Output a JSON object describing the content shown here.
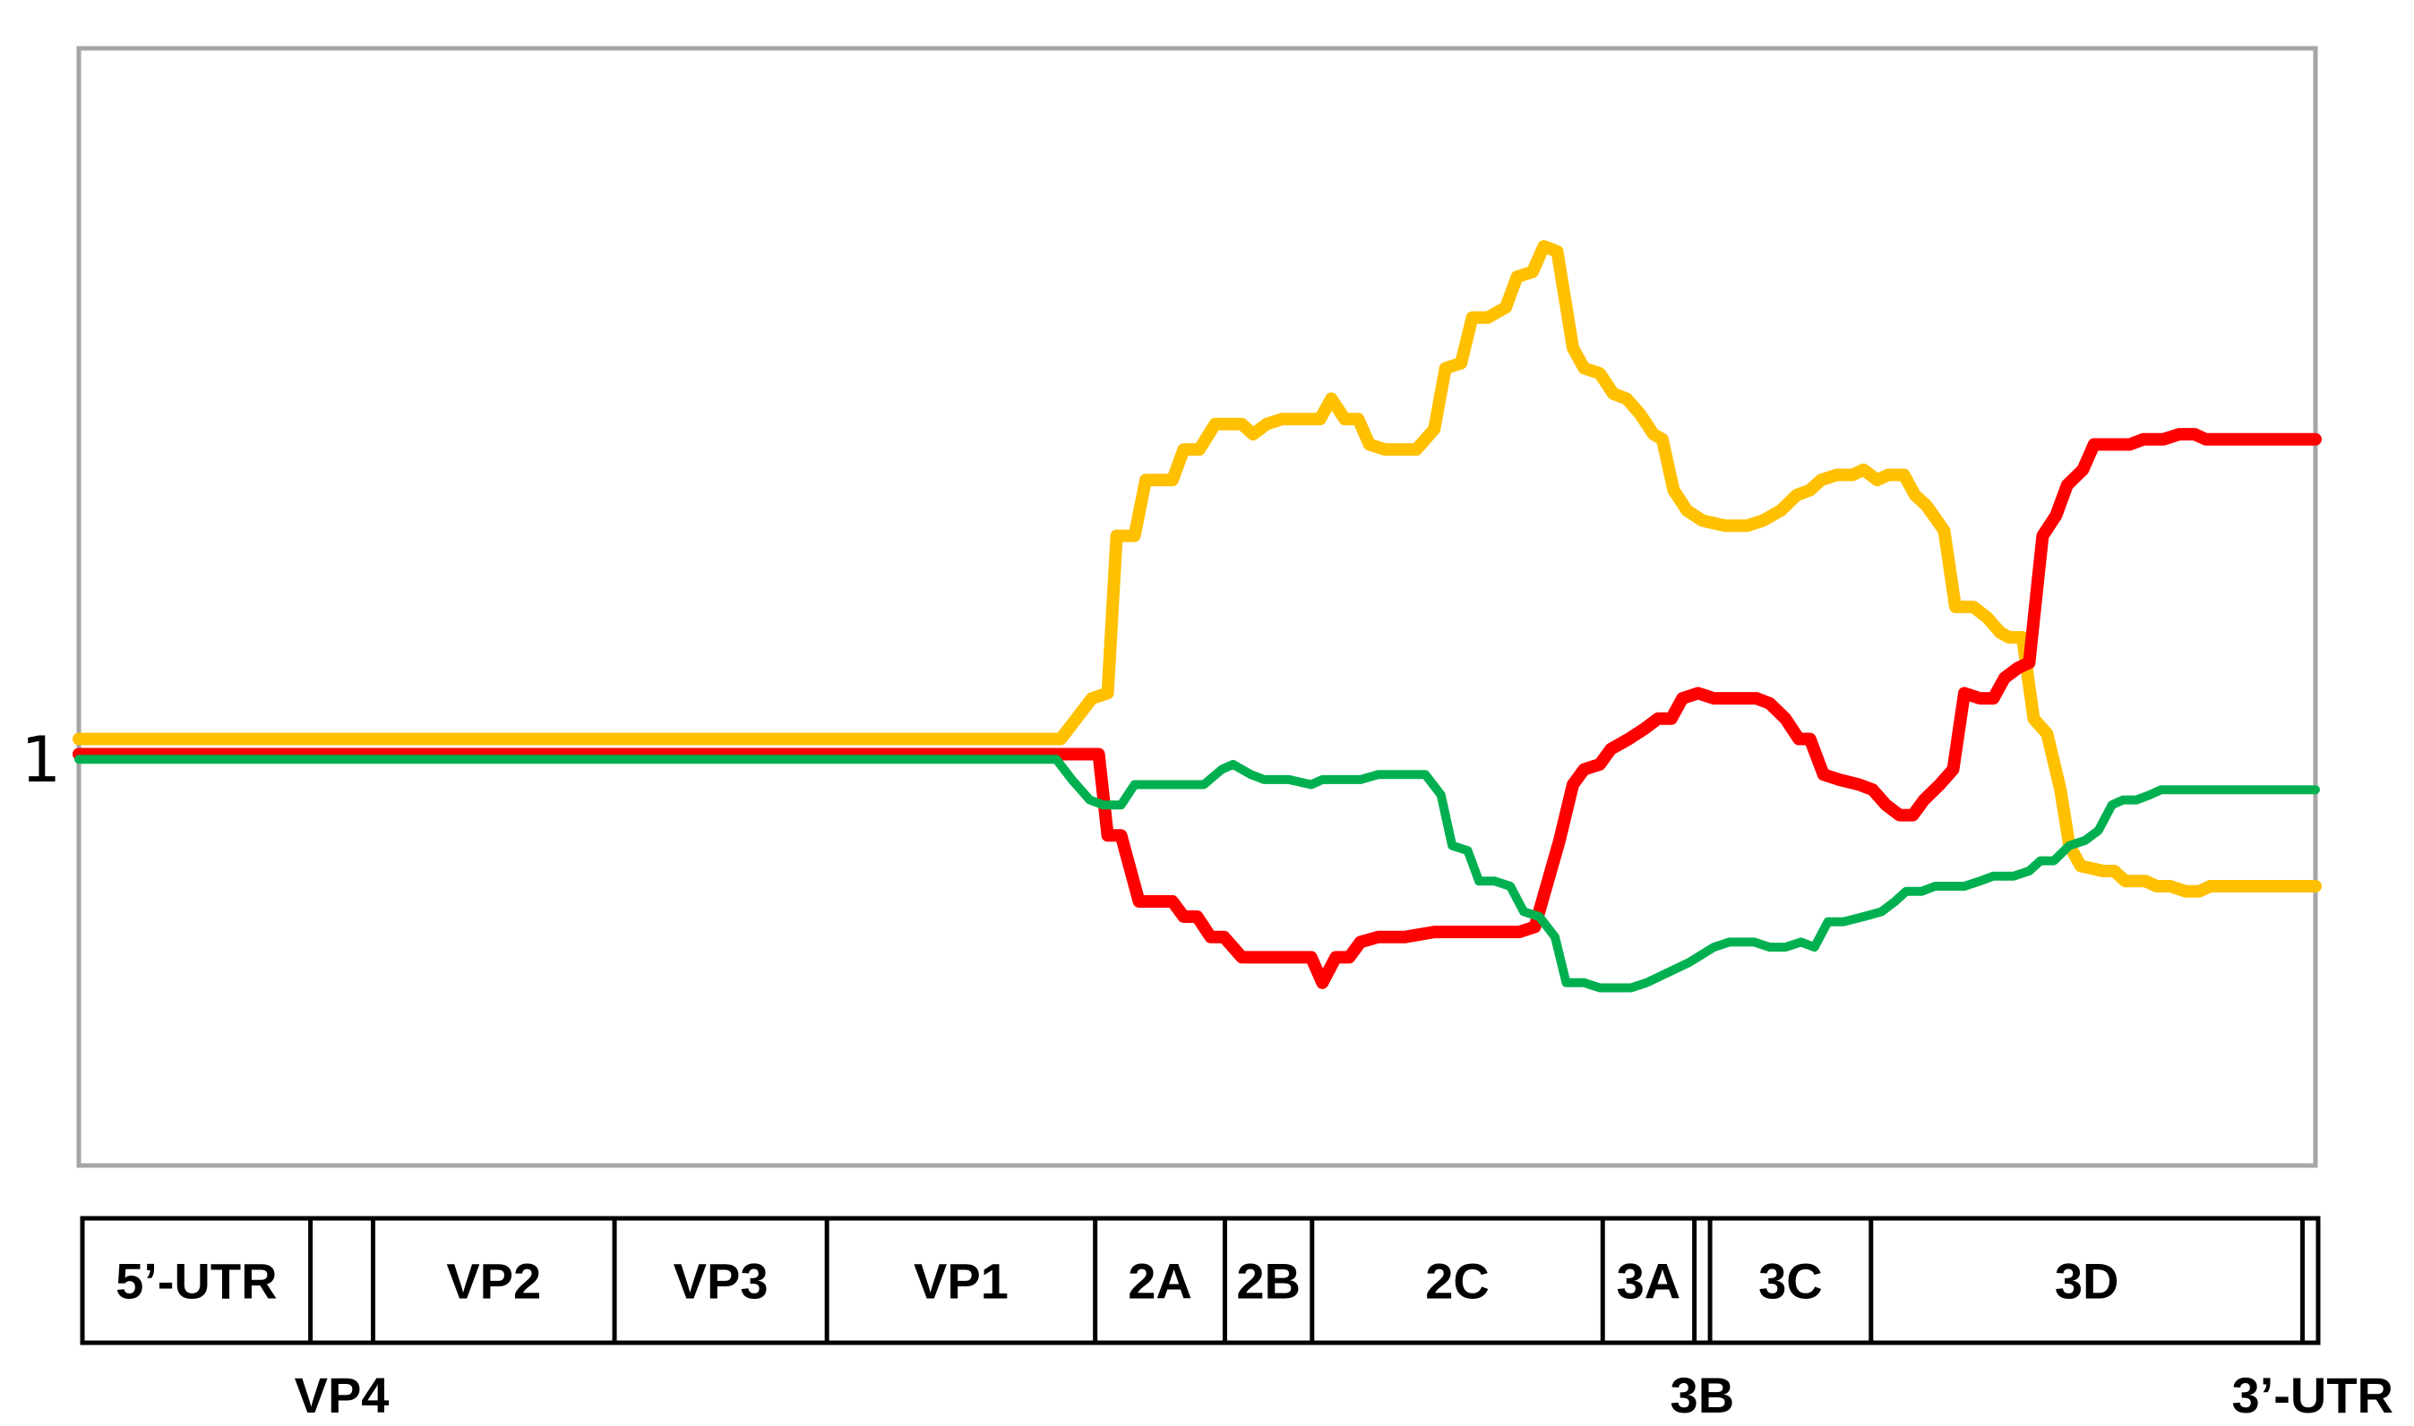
{
  "chart_data": {
    "type": "line",
    "title": "",
    "xlabel": "",
    "ylabel": "",
    "grid": false,
    "legend": "none",
    "y_ticks": [
      "1"
    ],
    "ylim": [
      0.2,
      2.4
    ],
    "xlim": [
      0,
      100
    ],
    "series": [
      {
        "color": "#FFC000",
        "points": [
          [
            0,
            1.04
          ],
          [
            43.9,
            1.04
          ],
          [
            44.6,
            1.08
          ],
          [
            45.3,
            1.12
          ],
          [
            46,
            1.13
          ],
          [
            46.4,
            1.44
          ],
          [
            47.2,
            1.44
          ],
          [
            47.7,
            1.55
          ],
          [
            48.9,
            1.55
          ],
          [
            49.4,
            1.61
          ],
          [
            50.1,
            1.61
          ],
          [
            50.8,
            1.66
          ],
          [
            52,
            1.66
          ],
          [
            52.5,
            1.64
          ],
          [
            53.1,
            1.66
          ],
          [
            53.8,
            1.67
          ],
          [
            55.5,
            1.67
          ],
          [
            56,
            1.71
          ],
          [
            56.6,
            1.67
          ],
          [
            57.2,
            1.67
          ],
          [
            57.7,
            1.62
          ],
          [
            58.4,
            1.61
          ],
          [
            59.8,
            1.61
          ],
          [
            60.6,
            1.65
          ],
          [
            61.1,
            1.77
          ],
          [
            61.8,
            1.78
          ],
          [
            62.3,
            1.87
          ],
          [
            63,
            1.87
          ],
          [
            63.8,
            1.89
          ],
          [
            64.3,
            1.95
          ],
          [
            65,
            1.96
          ],
          [
            65.5,
            2.01
          ],
          [
            66.1,
            2
          ],
          [
            66.8,
            1.81
          ],
          [
            67.3,
            1.77
          ],
          [
            68,
            1.76
          ],
          [
            68.6,
            1.72
          ],
          [
            69.2,
            1.71
          ],
          [
            69.8,
            1.68
          ],
          [
            70.4,
            1.64
          ],
          [
            70.8,
            1.63
          ],
          [
            71.3,
            1.53
          ],
          [
            71.9,
            1.49
          ],
          [
            72.6,
            1.47
          ],
          [
            73.6,
            1.46
          ],
          [
            74.6,
            1.46
          ],
          [
            75.3,
            1.47
          ],
          [
            76.1,
            1.49
          ],
          [
            76.8,
            1.52
          ],
          [
            77.4,
            1.53
          ],
          [
            77.9,
            1.55
          ],
          [
            78.6,
            1.56
          ],
          [
            79.3,
            1.56
          ],
          [
            79.8,
            1.57
          ],
          [
            80.4,
            1.55
          ],
          [
            80.9,
            1.56
          ],
          [
            81.6,
            1.56
          ],
          [
            82.1,
            1.52
          ],
          [
            82.6,
            1.5
          ],
          [
            83.4,
            1.45
          ],
          [
            83.9,
            1.3
          ],
          [
            84.7,
            1.3
          ],
          [
            85.3,
            1.28
          ],
          [
            85.9,
            1.25
          ],
          [
            86.3,
            1.24
          ],
          [
            86.9,
            1.24
          ],
          [
            87.4,
            1.08
          ],
          [
            88,
            1.05
          ],
          [
            88.6,
            0.94
          ],
          [
            89,
            0.83
          ],
          [
            89.5,
            0.79
          ],
          [
            90.5,
            0.78
          ],
          [
            91,
            0.78
          ],
          [
            91.5,
            0.76
          ],
          [
            92.4,
            0.76
          ],
          [
            92.9,
            0.75
          ],
          [
            93.5,
            0.75
          ],
          [
            94.2,
            0.74
          ],
          [
            94.8,
            0.74
          ],
          [
            95.3,
            0.75
          ],
          [
            100,
            0.75
          ]
        ]
      },
      {
        "color": "#FF0000",
        "points": [
          [
            0,
            1.01
          ],
          [
            44.1,
            1.01
          ],
          [
            45.6,
            1.01
          ],
          [
            46,
            0.85
          ],
          [
            46.6,
            0.85
          ],
          [
            47.4,
            0.72
          ],
          [
            48.9,
            0.72
          ],
          [
            49.4,
            0.69
          ],
          [
            50,
            0.69
          ],
          [
            50.6,
            0.65
          ],
          [
            51.2,
            0.65
          ],
          [
            52,
            0.61
          ],
          [
            55.1,
            0.61
          ],
          [
            55.6,
            0.56
          ],
          [
            56.2,
            0.61
          ],
          [
            56.8,
            0.61
          ],
          [
            57.3,
            0.64
          ],
          [
            58.1,
            0.65
          ],
          [
            59.3,
            0.65
          ],
          [
            60.6,
            0.66
          ],
          [
            64.4,
            0.66
          ],
          [
            65.1,
            0.67
          ],
          [
            66.2,
            0.84
          ],
          [
            66.8,
            0.95
          ],
          [
            67.3,
            0.98
          ],
          [
            68,
            0.99
          ],
          [
            68.5,
            1.02
          ],
          [
            69.3,
            1.04
          ],
          [
            70,
            1.06
          ],
          [
            70.6,
            1.08
          ],
          [
            71.2,
            1.08
          ],
          [
            71.7,
            1.12
          ],
          [
            72.4,
            1.13
          ],
          [
            73.1,
            1.12
          ],
          [
            75,
            1.12
          ],
          [
            75.6,
            1.11
          ],
          [
            76.3,
            1.08
          ],
          [
            76.9,
            1.04
          ],
          [
            77.4,
            1.04
          ],
          [
            78,
            0.97
          ],
          [
            78.7,
            0.96
          ],
          [
            79.6,
            0.95
          ],
          [
            80.2,
            0.94
          ],
          [
            80.8,
            0.91
          ],
          [
            81.4,
            0.89
          ],
          [
            82,
            0.89
          ],
          [
            82.5,
            0.92
          ],
          [
            83.2,
            0.95
          ],
          [
            83.8,
            0.98
          ],
          [
            84.3,
            1.13
          ],
          [
            85,
            1.12
          ],
          [
            85.6,
            1.12
          ],
          [
            86.1,
            1.16
          ],
          [
            86.7,
            1.18
          ],
          [
            87.2,
            1.19
          ],
          [
            87.8,
            1.44
          ],
          [
            88.4,
            1.48
          ],
          [
            88.9,
            1.54
          ],
          [
            89.6,
            1.57
          ],
          [
            90.1,
            1.62
          ],
          [
            90.7,
            1.62
          ],
          [
            91.7,
            1.62
          ],
          [
            92.3,
            1.63
          ],
          [
            93.2,
            1.63
          ],
          [
            93.9,
            1.64
          ],
          [
            94.6,
            1.64
          ],
          [
            95.1,
            1.63
          ],
          [
            100,
            1.63
          ]
        ]
      },
      {
        "color": "#00B050",
        "points": [
          [
            0,
            1
          ],
          [
            43.7,
            1
          ],
          [
            44.4,
            0.96
          ],
          [
            45.2,
            0.92
          ],
          [
            45.8,
            0.91
          ],
          [
            46.6,
            0.91
          ],
          [
            47.2,
            0.95
          ],
          [
            50.3,
            0.95
          ],
          [
            51.1,
            0.98
          ],
          [
            51.6,
            0.99
          ],
          [
            52.4,
            0.97
          ],
          [
            53,
            0.96
          ],
          [
            54.1,
            0.96
          ],
          [
            55.1,
            0.95
          ],
          [
            55.6,
            0.96
          ],
          [
            57.3,
            0.96
          ],
          [
            58.1,
            0.97
          ],
          [
            60.2,
            0.97
          ],
          [
            60.9,
            0.93
          ],
          [
            61.4,
            0.83
          ],
          [
            62.1,
            0.82
          ],
          [
            62.6,
            0.76
          ],
          [
            63.3,
            0.76
          ],
          [
            64,
            0.75
          ],
          [
            64.6,
            0.7
          ],
          [
            65.3,
            0.69
          ],
          [
            66,
            0.65
          ],
          [
            66.5,
            0.56
          ],
          [
            67.3,
            0.56
          ],
          [
            68,
            0.55
          ],
          [
            69.4,
            0.55
          ],
          [
            70.1,
            0.56
          ],
          [
            72,
            0.6
          ],
          [
            73.1,
            0.63
          ],
          [
            73.8,
            0.64
          ],
          [
            74.9,
            0.64
          ],
          [
            75.6,
            0.63
          ],
          [
            76.3,
            0.63
          ],
          [
            77,
            0.64
          ],
          [
            77.6,
            0.63
          ],
          [
            78.2,
            0.68
          ],
          [
            78.9,
            0.68
          ],
          [
            79.8,
            0.69
          ],
          [
            80.6,
            0.7
          ],
          [
            81.2,
            0.72
          ],
          [
            81.7,
            0.74
          ],
          [
            82.4,
            0.74
          ],
          [
            83,
            0.75
          ],
          [
            84.3,
            0.75
          ],
          [
            85,
            0.76
          ],
          [
            85.6,
            0.77
          ],
          [
            86.5,
            0.77
          ],
          [
            87.2,
            0.78
          ],
          [
            87.7,
            0.8
          ],
          [
            88.3,
            0.8
          ],
          [
            89,
            0.83
          ],
          [
            89.7,
            0.84
          ],
          [
            90.3,
            0.86
          ],
          [
            90.9,
            0.91
          ],
          [
            91.4,
            0.92
          ],
          [
            92,
            0.92
          ],
          [
            92.6,
            0.93
          ],
          [
            93.1,
            0.94
          ],
          [
            100,
            0.94
          ]
        ]
      }
    ]
  },
  "genome_map": {
    "segments": [
      {
        "label": "5’-UTR",
        "start": 0,
        "end": 10.2
      },
      {
        "label": "",
        "start": 10.2,
        "end": 13
      },
      {
        "label": "VP2",
        "start": 13,
        "end": 23.8
      },
      {
        "label": "VP3",
        "start": 23.8,
        "end": 33.3
      },
      {
        "label": "VP1",
        "start": 33.3,
        "end": 45.3
      },
      {
        "label": "2A",
        "start": 45.3,
        "end": 51.1
      },
      {
        "label": "2B",
        "start": 51.1,
        "end": 55
      },
      {
        "label": "2C",
        "start": 55,
        "end": 68
      },
      {
        "label": "3A",
        "start": 68,
        "end": 72.1
      },
      {
        "label": "",
        "start": 72.1,
        "end": 72.8
      },
      {
        "label": "3C",
        "start": 72.8,
        "end": 80
      },
      {
        "label": "3D",
        "start": 80,
        "end": 99.3
      },
      {
        "label": "",
        "start": 99.3,
        "end": 100
      }
    ],
    "below_labels": [
      {
        "label": "VP4",
        "at": 11.6
      },
      {
        "label": "3B",
        "at": 72.45
      },
      {
        "label": "3’-UTR",
        "at": 99.65
      }
    ]
  }
}
